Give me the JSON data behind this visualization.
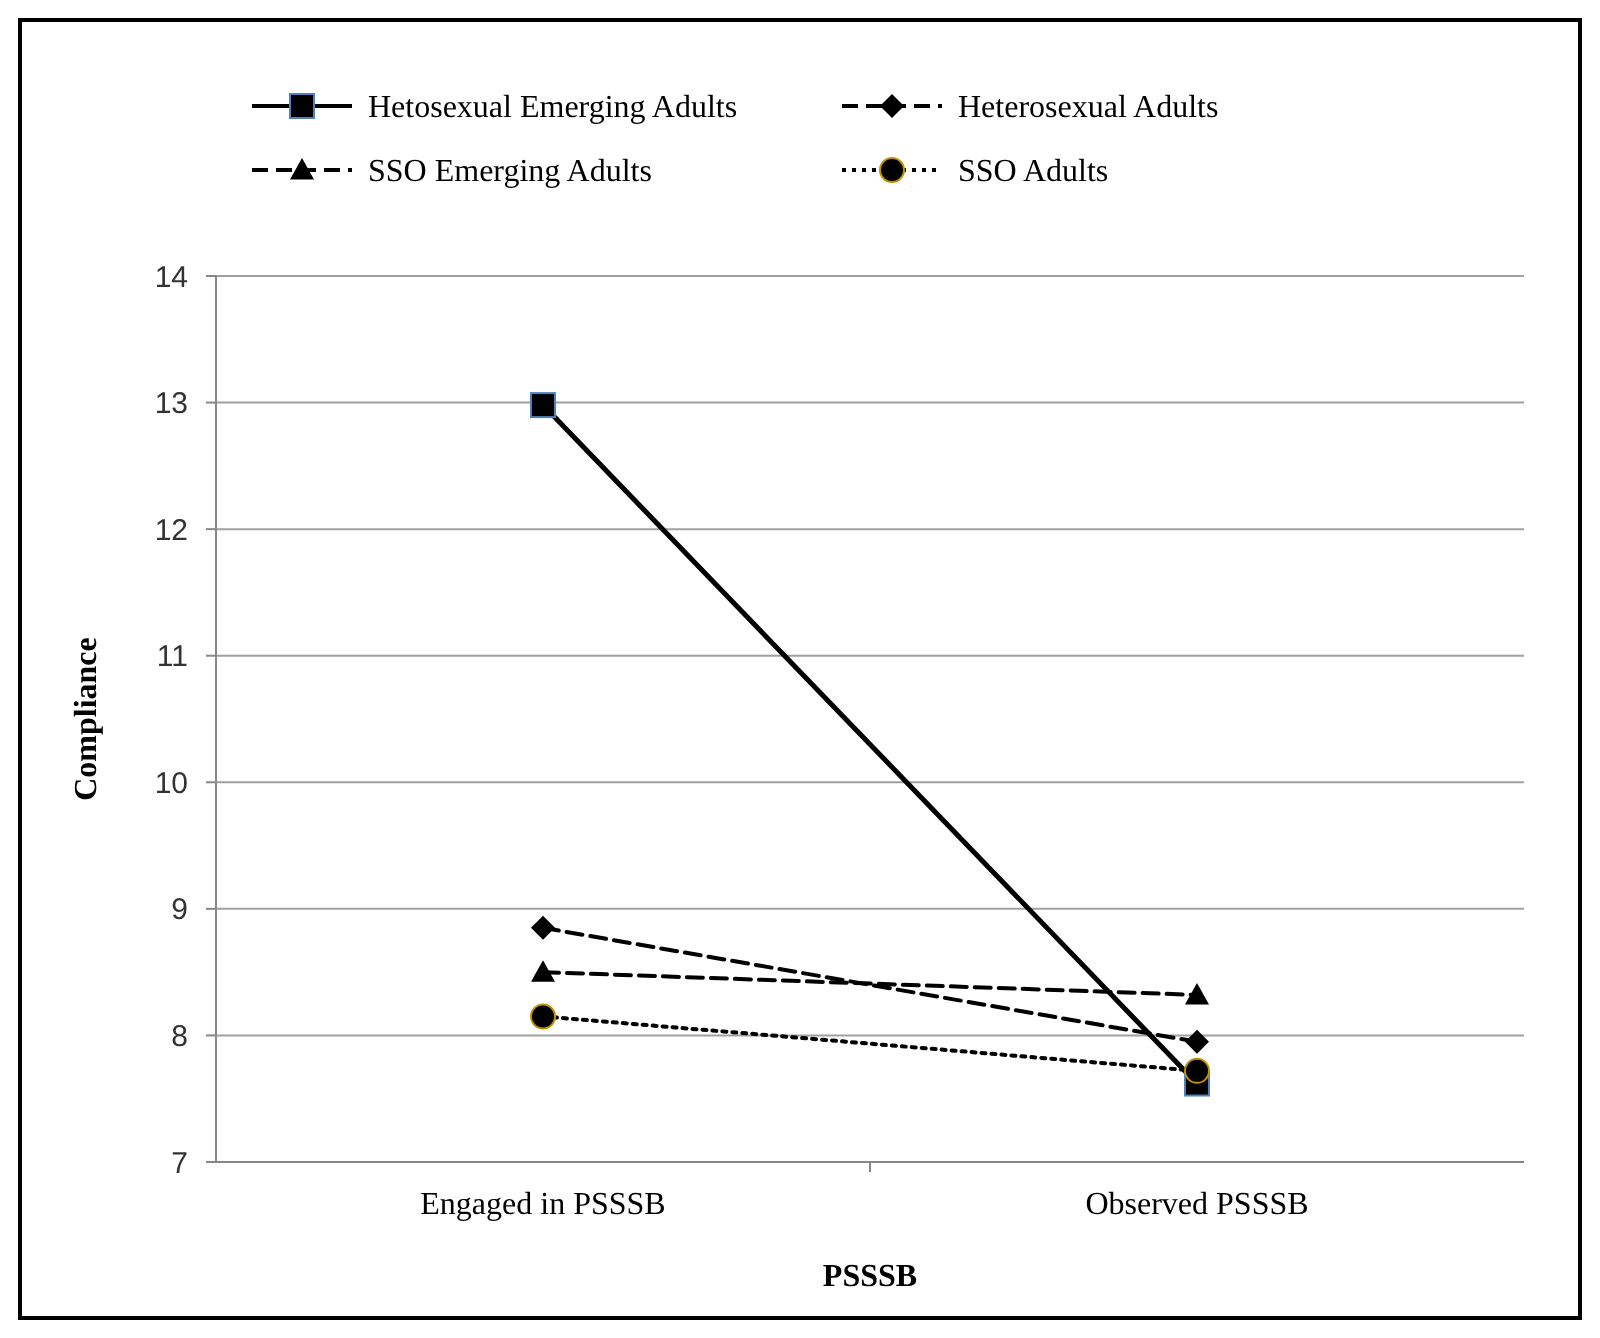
{
  "chart_data": {
    "type": "line",
    "xlabel": "PSSSB",
    "ylabel": "Compliance",
    "categories": [
      "Engaged in PSSSB",
      "Observed PSSSB"
    ],
    "series": [
      {
        "name": "Hetosexual Emerging Adults",
        "color": "#000000",
        "values": [
          12.98,
          7.62
        ],
        "marker": "square",
        "line_style": "solid"
      },
      {
        "name": "Heterosexual Adults",
        "color": "#000000",
        "values": [
          8.85,
          7.95
        ],
        "marker": "diamond",
        "line_style": "dashed"
      },
      {
        "name": "SSO Emerging Adults",
        "color": "#000000",
        "values": [
          8.5,
          8.32
        ],
        "marker": "triangle",
        "line_style": "dashed"
      },
      {
        "name": "SSO Adults",
        "color": "#000000",
        "values": [
          8.15,
          7.72
        ],
        "marker": "circle",
        "line_style": "dotted"
      }
    ],
    "ylim": [
      7,
      14
    ],
    "yticks": [
      7,
      8,
      9,
      10,
      11,
      12,
      13,
      14
    ],
    "grid": "y",
    "legend": "top"
  }
}
